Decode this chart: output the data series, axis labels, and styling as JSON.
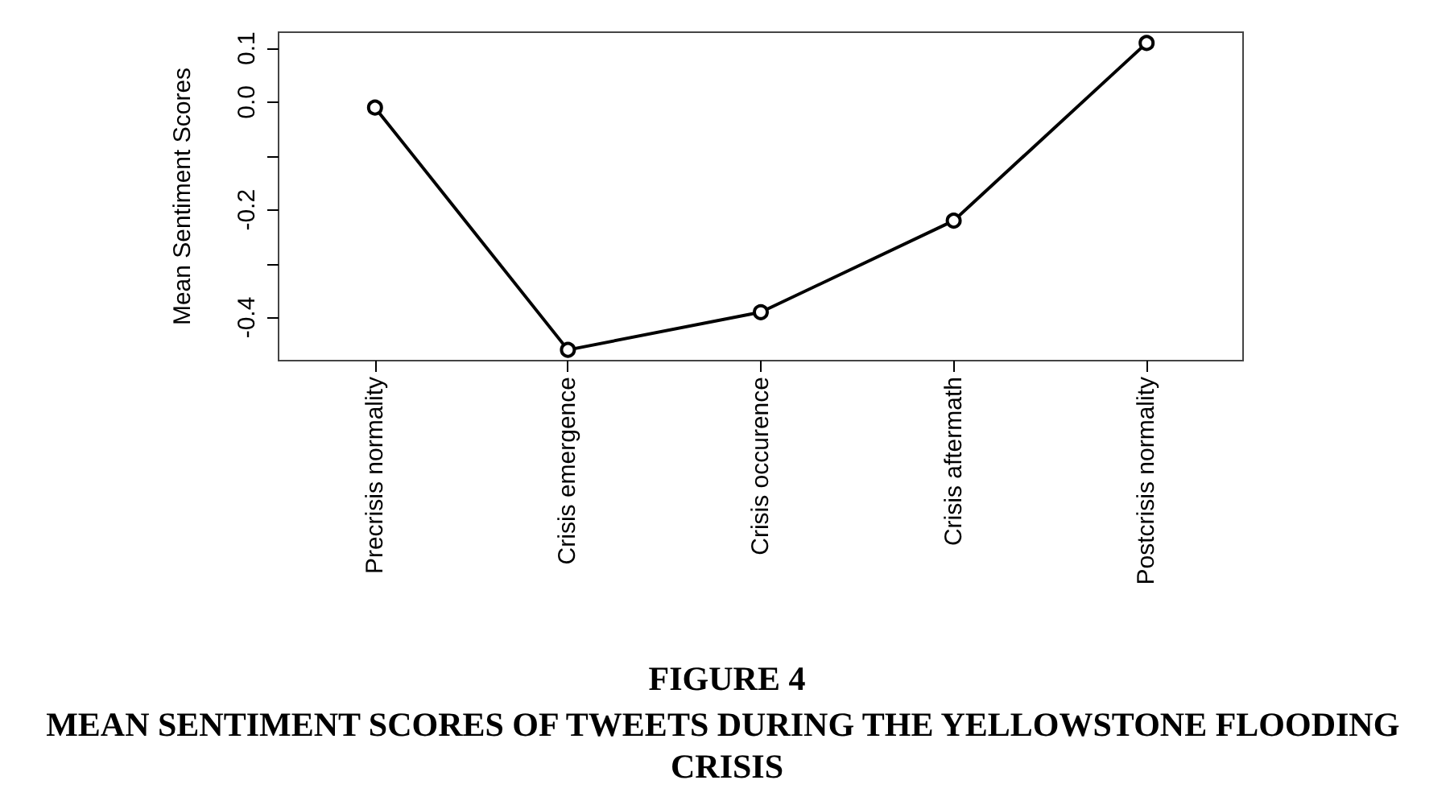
{
  "chart_data": {
    "type": "line",
    "title": "FIGURE 4",
    "subtitle": "MEAN SENTIMENT SCORES OF TWEETS DURING THE YELLOWSTONE FLOODING CRISIS",
    "ylabel": "Mean Sentiment Scores",
    "categories": [
      "Precrisis normality",
      "Crisis emergence",
      "Crisis occurence",
      "Crisis aftermath",
      "Postcrisis normality"
    ],
    "series": [
      {
        "color": "#000000",
        "values": [
          -0.01,
          -0.46,
          -0.39,
          -0.22,
          0.11
        ]
      }
    ],
    "ylim": [
      -0.48,
      0.13
    ],
    "yticks": [
      {
        "value": -0.4,
        "label": "-0.4"
      },
      {
        "value": -0.3,
        "label": null
      },
      {
        "value": -0.2,
        "label": "-0.2"
      },
      {
        "value": -0.1,
        "label": null
      },
      {
        "value": 0,
        "label": "0.0"
      },
      {
        "value": 0.1,
        "label": "0.1"
      }
    ],
    "grid": false,
    "marker": "circle",
    "line_style": "solid"
  }
}
